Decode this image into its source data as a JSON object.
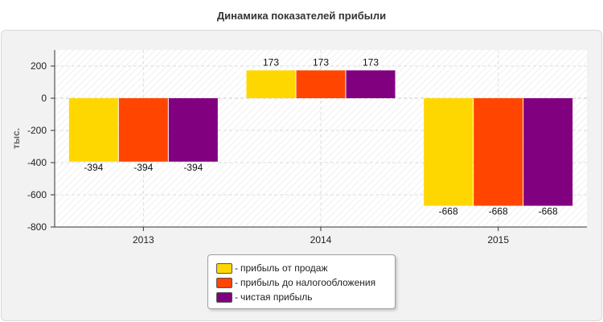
{
  "chart_data": {
    "type": "bar",
    "title": "Динамика показателей прибыли",
    "ylabel": "тыс.",
    "xlabel": "",
    "categories": [
      "2013",
      "2014",
      "2015"
    ],
    "series": [
      {
        "name": "прибыль от продаж",
        "color": "#ffd700",
        "values": [
          -394,
          173,
          -668
        ]
      },
      {
        "name": "прибыль до налогообложения",
        "color": "#ff4500",
        "values": [
          -394,
          173,
          -668
        ]
      },
      {
        "name": "чистая прибыль",
        "color": "#800080",
        "values": [
          -394,
          173,
          -668
        ]
      }
    ],
    "ylim": [
      -800,
      300
    ],
    "yticks": [
      200,
      0,
      -200,
      -400,
      -600,
      -800
    ],
    "grid": true,
    "legend_position": "bottom-center"
  },
  "legend": {
    "items": [
      {
        "label": "прибыль от продаж",
        "color": "#ffd700"
      },
      {
        "label": "прибыль до налогообложения",
        "color": "#ff4500"
      },
      {
        "label": "чистая прибыль",
        "color": "#800080"
      }
    ],
    "prefix": "-"
  }
}
